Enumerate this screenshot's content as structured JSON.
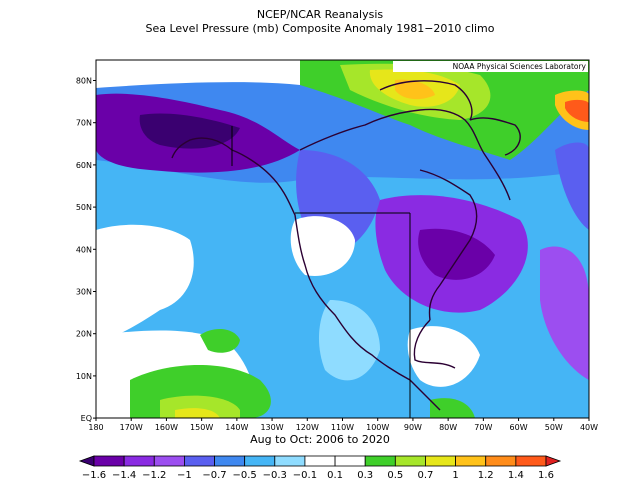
{
  "header": {
    "title": "NCEP/NCAR Reanalysis",
    "subtitle": "Sea Level Pressure (mb) Composite Anomaly 1981−2010 climo"
  },
  "credit": "NOAA Physical Sciences Laboratory",
  "period_label": "Aug to Oct: 2006 to 2020",
  "axes": {
    "x_ticks": [
      "180",
      "170W",
      "160W",
      "150W",
      "140W",
      "130W",
      "120W",
      "110W",
      "100W",
      "90W",
      "80W",
      "70W",
      "60W",
      "50W",
      "40W"
    ],
    "y_ticks": [
      "80N",
      "70N",
      "60N",
      "50N",
      "40N",
      "30N",
      "20N",
      "10N",
      "EQ"
    ]
  },
  "colorbar": {
    "labels": [
      "−1.6",
      "−1.4",
      "−1.2",
      "−1",
      "−0.7",
      "−0.5",
      "−0.3",
      "−0.1",
      "0.1",
      "0.3",
      "0.5",
      "0.7",
      "1",
      "1.2",
      "1.4",
      "1.6"
    ],
    "colors": [
      "#3a0070",
      "#6a00a8",
      "#8a2be2",
      "#9c4ef0",
      "#5a5ff0",
      "#3f88f0",
      "#45b5f5",
      "#8fdcff",
      "#ffffff",
      "#ffffff",
      "#3fcf2a",
      "#a6e62a",
      "#e6e61a",
      "#ffc21a",
      "#ff8c1a",
      "#ff5a1a",
      "#e02020"
    ]
  },
  "chart_data": {
    "type": "heatmap",
    "variable": "Sea Level Pressure (mb) Composite Anomaly",
    "region": {
      "lon_range": [
        "180",
        "40W"
      ],
      "lat_range": [
        "EQ",
        "85N"
      ]
    },
    "color_scale": [
      -1.6,
      -1.4,
      -1.2,
      -1,
      -0.7,
      -0.5,
      -0.3,
      -0.1,
      0.1,
      0.3,
      0.5,
      0.7,
      1,
      1.2,
      1.4,
      1.6
    ]
  }
}
